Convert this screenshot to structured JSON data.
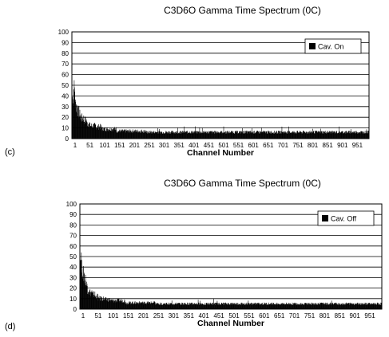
{
  "chart_data": [
    {
      "type": "bar",
      "panel_letter": "(c)",
      "title": "C3D6O  Gamma Time Spectrum (0C)",
      "xlabel": "Channel Number",
      "ylabel": "",
      "ylim": [
        0,
        100
      ],
      "y_ticks": [
        0,
        10,
        20,
        30,
        40,
        50,
        60,
        70,
        80,
        90,
        100
      ],
      "x_tick_labels": [
        "1",
        "51",
        "101",
        "151",
        "201",
        "251",
        "301",
        "351",
        "401",
        "451",
        "501",
        "551",
        "601",
        "651",
        "701",
        "751",
        "801",
        "851",
        "901",
        "951"
      ],
      "n_channels": 1000,
      "grid": true,
      "legend": {
        "label": "Cav. On",
        "placement": "top-right"
      },
      "values_by_channel_range": [
        {
          "from": 1,
          "to": 5,
          "value": 38
        },
        {
          "from": 6,
          "to": 10,
          "value": 46
        },
        {
          "from": 11,
          "to": 15,
          "value": 32
        },
        {
          "from": 16,
          "to": 20,
          "value": 29
        },
        {
          "from": 21,
          "to": 25,
          "value": 25
        },
        {
          "from": 26,
          "to": 30,
          "value": 22
        },
        {
          "from": 31,
          "to": 40,
          "value": 19
        },
        {
          "from": 41,
          "to": 50,
          "value": 17
        },
        {
          "from": 51,
          "to": 60,
          "value": 14
        },
        {
          "from": 61,
          "to": 80,
          "value": 12
        },
        {
          "from": 81,
          "to": 100,
          "value": 11
        },
        {
          "from": 101,
          "to": 150,
          "value": 9
        },
        {
          "from": 151,
          "to": 250,
          "value": 7
        },
        {
          "from": 251,
          "to": 1000,
          "value": 6
        }
      ]
    },
    {
      "type": "bar",
      "panel_letter": "(d)",
      "title": "C3D6O  Gamma Time Spectrum (0C)",
      "xlabel": "Channel Number",
      "ylabel": "",
      "ylim": [
        0,
        100
      ],
      "y_ticks": [
        0,
        10,
        20,
        30,
        40,
        50,
        60,
        70,
        80,
        90,
        100
      ],
      "x_tick_labels": [
        "1",
        "51",
        "101",
        "151",
        "201",
        "251",
        "301",
        "351",
        "401",
        "451",
        "501",
        "551",
        "601",
        "651",
        "701",
        "751",
        "801",
        "851",
        "901",
        "951"
      ],
      "n_channels": 1000,
      "grid": true,
      "legend": {
        "label": "Cav. Off",
        "placement": "top-right"
      },
      "values_by_channel_range": [
        {
          "from": 1,
          "to": 5,
          "value": 48
        },
        {
          "from": 6,
          "to": 10,
          "value": 38
        },
        {
          "from": 11,
          "to": 15,
          "value": 33
        },
        {
          "from": 16,
          "to": 20,
          "value": 28
        },
        {
          "from": 21,
          "to": 25,
          "value": 23
        },
        {
          "from": 26,
          "to": 30,
          "value": 19
        },
        {
          "from": 31,
          "to": 40,
          "value": 16
        },
        {
          "from": 41,
          "to": 50,
          "value": 14
        },
        {
          "from": 51,
          "to": 60,
          "value": 12
        },
        {
          "from": 61,
          "to": 80,
          "value": 10
        },
        {
          "from": 81,
          "to": 100,
          "value": 9
        },
        {
          "from": 101,
          "to": 150,
          "value": 8
        },
        {
          "from": 151,
          "to": 250,
          "value": 6
        },
        {
          "from": 251,
          "to": 1000,
          "value": 5
        }
      ]
    }
  ]
}
